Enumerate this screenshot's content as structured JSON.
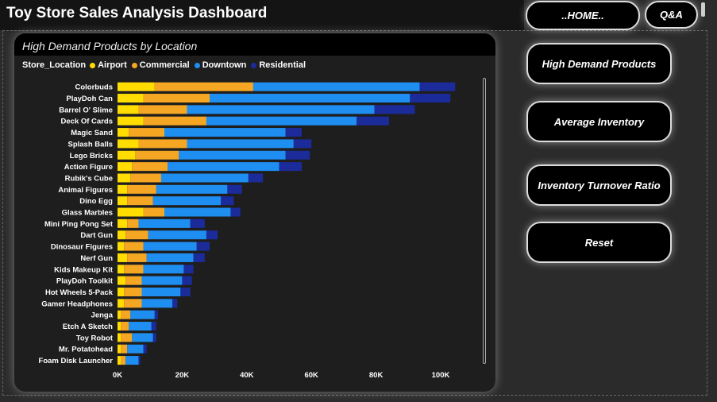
{
  "header": {
    "title": "Toy Store Sales Analysis Dashboard"
  },
  "nav": {
    "home": "..HOME..",
    "qa": "Q&A",
    "high_demand": "High Demand Products",
    "avg_inventory": "Average Inventory",
    "turnover": "Inventory Turnover Ratio",
    "reset": "Reset"
  },
  "colors": {
    "Airport": "#ffdd00",
    "Commercial": "#f5a623",
    "Downtown": "#1f8ef1",
    "Residential": "#1c2b9a"
  },
  "chart_data": {
    "type": "bar",
    "orientation": "horizontal",
    "stacked": true,
    "title": "High Demand Products by Location",
    "legend_title": "Store_Location",
    "legend_position": "top-left",
    "categories": [
      "Colorbuds",
      "PlayDoh Can",
      "Barrel O' Slime",
      "Deck Of Cards",
      "Magic Sand",
      "Splash Balls",
      "Lego Bricks",
      "Action Figure",
      "Rubik's Cube",
      "Animal Figures",
      "Dino Egg",
      "Glass Marbles",
      "Mini Ping Pong Set",
      "Dart Gun",
      "Dinosaur Figures",
      "Nerf Gun",
      "Kids Makeup Kit",
      "PlayDoh Toolkit",
      "Hot Wheels 5-Pack",
      "Gamer Headphones",
      "Jenga",
      "Etch A Sketch",
      "Toy Robot",
      "Mr. Potatohead",
      "Foam Disk Launcher"
    ],
    "series": [
      {
        "name": "Airport",
        "values": [
          11500,
          8000,
          6500,
          8000,
          3500,
          6500,
          5500,
          4500,
          4000,
          3000,
          3000,
          8000,
          3000,
          2500,
          2000,
          3000,
          2000,
          2500,
          2000,
          2000,
          1000,
          1000,
          1000,
          1000,
          1000
        ]
      },
      {
        "name": "Commercial",
        "values": [
          30500,
          20500,
          15000,
          19500,
          11000,
          15000,
          13500,
          11000,
          9500,
          9000,
          8000,
          6500,
          3500,
          7000,
          6000,
          6000,
          6000,
          5000,
          5500,
          5500,
          3000,
          2500,
          3500,
          2000,
          1500
        ]
      },
      {
        "name": "Downtown",
        "values": [
          51500,
          62000,
          58000,
          46500,
          37500,
          33000,
          33000,
          34500,
          27000,
          22000,
          21000,
          20500,
          16000,
          18000,
          16500,
          14500,
          12500,
          12500,
          12000,
          9500,
          7500,
          7000,
          6500,
          5000,
          4000
        ]
      },
      {
        "name": "Residential",
        "values": [
          11000,
          12500,
          12500,
          10000,
          5000,
          5500,
          7500,
          7000,
          4500,
          4500,
          4000,
          3000,
          4500,
          3500,
          4000,
          3500,
          3000,
          3000,
          3000,
          1500,
          1000,
          1500,
          1000,
          1000,
          500
        ]
      }
    ],
    "x_ticks": [
      "0K",
      "20K",
      "40K",
      "60K",
      "80K",
      "100K"
    ],
    "xlim": [
      0,
      104000
    ],
    "grid": false
  }
}
